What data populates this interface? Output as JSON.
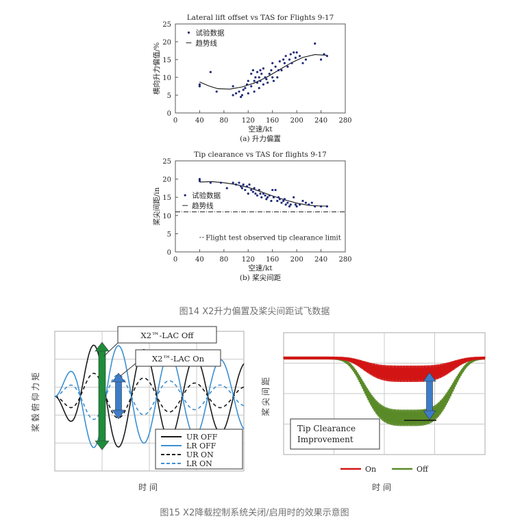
{
  "figure14_caption": "图14 X2升力偏置及桨尖间距试飞数据",
  "figure15_caption": "图15 X2降载控制系统关闭/启用时的效果示意图",
  "colors": {
    "points": "#1f2a78",
    "line": "#111111",
    "ur_off": "#1a1a1a",
    "lr_off": "#3c8fd0",
    "arrow_green": "#1e8c3a",
    "arrow_blue": "#3d7cc9",
    "tip_on": "#d21414",
    "tip_off": "#5a8a28",
    "grid": "#c8c8c8",
    "caption": "#707070"
  },
  "chart_data": [
    {
      "type": "scatter",
      "title": "Lateral lift offset vs TAS for Flights 9-17",
      "subtitle": "(a) 升力偏置",
      "xlabel": "空速/kt",
      "ylabel": "横向升力偏值/%",
      "xlim": [
        0,
        280
      ],
      "ylim": [
        0,
        25
      ],
      "xticks": [
        0,
        40,
        80,
        120,
        160,
        200,
        240,
        280
      ],
      "yticks": [
        0,
        5,
        10,
        15,
        20,
        25
      ],
      "legend": [
        "试验数据",
        "趋势线"
      ],
      "legend_position": "top-left",
      "grid": false,
      "points": [
        [
          40,
          7.5
        ],
        [
          40,
          8
        ],
        [
          58,
          11.5
        ],
        [
          68,
          6
        ],
        [
          95,
          7.5
        ],
        [
          95,
          5
        ],
        [
          100,
          5.5
        ],
        [
          105,
          6
        ],
        [
          108,
          4.5
        ],
        [
          110,
          5
        ],
        [
          112,
          6.5
        ],
        [
          115,
          7
        ],
        [
          118,
          8
        ],
        [
          120,
          9
        ],
        [
          120,
          5.5
        ],
        [
          125,
          7.5
        ],
        [
          125,
          11
        ],
        [
          128,
          12
        ],
        [
          130,
          9
        ],
        [
          130,
          6
        ],
        [
          132,
          10
        ],
        [
          135,
          8.5
        ],
        [
          135,
          11.5
        ],
        [
          138,
          7
        ],
        [
          138,
          10
        ],
        [
          140,
          12
        ],
        [
          140,
          9
        ],
        [
          142,
          11
        ],
        [
          145,
          8
        ],
        [
          145,
          12.5
        ],
        [
          148,
          10
        ],
        [
          150,
          9.5
        ],
        [
          152,
          8.5
        ],
        [
          155,
          11
        ],
        [
          158,
          12
        ],
        [
          160,
          14
        ],
        [
          160,
          10
        ],
        [
          162,
          9
        ],
        [
          165,
          13
        ],
        [
          168,
          10
        ],
        [
          170,
          12
        ],
        [
          172,
          14.5
        ],
        [
          175,
          12
        ],
        [
          178,
          15
        ],
        [
          180,
          14
        ],
        [
          182,
          16
        ],
        [
          185,
          13
        ],
        [
          188,
          15
        ],
        [
          190,
          16.5
        ],
        [
          192,
          14
        ],
        [
          195,
          17
        ],
        [
          198,
          15.5
        ],
        [
          200,
          17
        ],
        [
          205,
          16
        ],
        [
          210,
          14
        ],
        [
          215,
          15
        ],
        [
          230,
          19.5
        ],
        [
          240,
          15
        ],
        [
          245,
          16.5
        ],
        [
          250,
          16
        ]
      ],
      "trend": [
        [
          40,
          8.7
        ],
        [
          55,
          7.6
        ],
        [
          70,
          6.8
        ],
        [
          90,
          6.7
        ],
        [
          110,
          7.3
        ],
        [
          130,
          8.4
        ],
        [
          150,
          10
        ],
        [
          170,
          12
        ],
        [
          190,
          14
        ],
        [
          210,
          15.6
        ],
        [
          230,
          16.4
        ],
        [
          250,
          16.2
        ]
      ]
    },
    {
      "type": "scatter",
      "title": "Tip clearance vs TAS for flights 9-17",
      "subtitle": "(b) 桨尖间距",
      "xlabel": "空速/kt",
      "ylabel": "桨尖间距/in",
      "xlim": [
        0,
        280
      ],
      "ylim": [
        0,
        25
      ],
      "xticks": [
        0,
        40,
        80,
        120,
        160,
        200,
        240,
        280
      ],
      "yticks": [
        0,
        5,
        10,
        15,
        20,
        25
      ],
      "legend": [
        "试验数据",
        "趋势线"
      ],
      "legend_position": "center-left",
      "limit_value": 11,
      "limit_label": "Flight test observed tip clearance limit",
      "grid": false,
      "points": [
        [
          40,
          19.5
        ],
        [
          40,
          20
        ],
        [
          58,
          19
        ],
        [
          75,
          19
        ],
        [
          85,
          17.5
        ],
        [
          95,
          19
        ],
        [
          100,
          18.5
        ],
        [
          105,
          19
        ],
        [
          108,
          18
        ],
        [
          110,
          17.5
        ],
        [
          112,
          18.5
        ],
        [
          115,
          17
        ],
        [
          118,
          18
        ],
        [
          120,
          16
        ],
        [
          122,
          18.5
        ],
        [
          125,
          17
        ],
        [
          128,
          16.5
        ],
        [
          130,
          17.5
        ],
        [
          132,
          16
        ],
        [
          135,
          15.5
        ],
        [
          138,
          17
        ],
        [
          140,
          16
        ],
        [
          142,
          15
        ],
        [
          145,
          16
        ],
        [
          148,
          15.5
        ],
        [
          150,
          14.5
        ],
        [
          152,
          15
        ],
        [
          155,
          15.5
        ],
        [
          158,
          14
        ],
        [
          160,
          17
        ],
        [
          162,
          15
        ],
        [
          165,
          17
        ],
        [
          168,
          14
        ],
        [
          170,
          15
        ],
        [
          172,
          14.5
        ],
        [
          175,
          13.5
        ],
        [
          178,
          14
        ],
        [
          180,
          14.5
        ],
        [
          182,
          13
        ],
        [
          185,
          13.5
        ],
        [
          188,
          12.5
        ],
        [
          190,
          13
        ],
        [
          195,
          15
        ],
        [
          198,
          13
        ],
        [
          200,
          12.5
        ],
        [
          205,
          13
        ],
        [
          210,
          14
        ],
        [
          215,
          13.5
        ],
        [
          220,
          13
        ],
        [
          225,
          13.5
        ],
        [
          230,
          12.5
        ],
        [
          240,
          12.5
        ],
        [
          250,
          12.5
        ]
      ],
      "trend": [
        [
          40,
          19.2
        ],
        [
          60,
          19.3
        ],
        [
          80,
          19
        ],
        [
          100,
          18.5
        ],
        [
          120,
          17.7
        ],
        [
          140,
          16.6
        ],
        [
          160,
          15.4
        ],
        [
          180,
          14.3
        ],
        [
          200,
          13.4
        ],
        [
          220,
          12.8
        ],
        [
          240,
          12.6
        ],
        [
          250,
          12.6
        ]
      ]
    },
    {
      "type": "line",
      "ylabel": "桨毂俯仰力矩",
      "xlabel": "时间",
      "legend_position": "bottom-right",
      "annotations": [
        "X2™-LAC Off",
        "X2™-LAC On"
      ],
      "grid": true,
      "series": [
        {
          "name": "UR OFF",
          "style": "solid",
          "color": "#1a1a1a",
          "amp": -1.0,
          "period": 0.27,
          "decay": 0.6
        },
        {
          "name": "LR OFF",
          "style": "solid",
          "color": "#3c8fd0",
          "amp": 1.0,
          "period": 0.27,
          "decay": 0.6
        },
        {
          "name": "UR ON",
          "style": "dashed",
          "color": "#1a1a1a",
          "amp": -0.45,
          "period": 0.27,
          "decay": 1.2
        },
        {
          "name": "LR ON",
          "style": "dashed",
          "color": "#3c8fd0",
          "amp": 0.45,
          "period": 0.27,
          "decay": 1.2
        }
      ]
    },
    {
      "type": "line",
      "ylabel": "桨尖间距",
      "xlabel": "时间",
      "legend_position": "bottom",
      "annotation": "Tip Clearance\nImprovement",
      "grid": true,
      "series": [
        {
          "name": "On",
          "color": "#d21414",
          "depth": 0.25
        },
        {
          "name": "Off",
          "color": "#5a8a28",
          "depth": 0.95
        }
      ]
    }
  ]
}
